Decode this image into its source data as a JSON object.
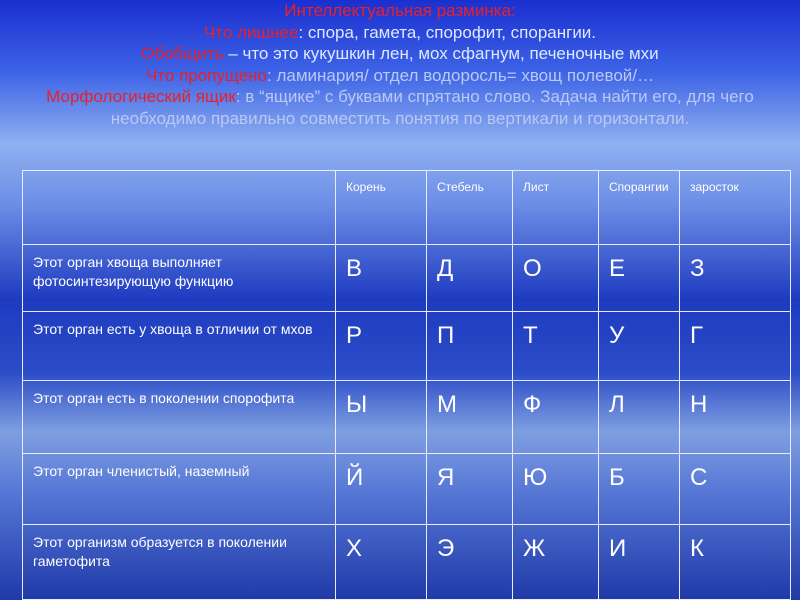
{
  "intro": {
    "title": "Интеллектуальная разминка:",
    "line1_label": "Что лишнее",
    "line1_text": ": спора, гамета, спорофит, спорангии.",
    "line2_label": "Обобщить",
    "line2_text": " – что это кукушкин лен, мох сфагнум, печеночные мхи",
    "line3_label": "Что пропущено",
    "line3_text": ": ламинария/ отдел водоросль= хвощ полевой/…",
    "line4_label": "Морфологический ящик",
    "line4_text": ": в “ящике” с буквами спрятано слово. Задача найти его, для чего необходимо правильно совместить понятия по вертикали и горизонтали."
  },
  "table": {
    "headers": [
      "",
      "Корень",
      "Стебель",
      "Лист",
      "Спорангии",
      "заросток"
    ],
    "rows": [
      {
        "q": "Этот орган хвоща выполняет фотосинтезирующую функцию",
        "cells": [
          "В",
          "Д",
          "О",
          "Е",
          "З"
        ]
      },
      {
        "q": "Этот орган есть у хвоща в отличии от мхов",
        "cells": [
          "Р",
          "П",
          "Т",
          "У",
          "Г"
        ]
      },
      {
        "q": "Этот орган есть в поколении спорофита",
        "cells": [
          "Ы",
          "М",
          "Ф",
          "Л",
          "Н"
        ]
      },
      {
        "q": "Этот орган членистый, наземный",
        "cells": [
          "Й",
          "Я",
          "Ю",
          "Б",
          "С"
        ]
      },
      {
        "q": "Этот организм образуется в поколении гаметофита",
        "cells": [
          "Х",
          "Э",
          "Ж",
          "И",
          "К"
        ]
      }
    ]
  }
}
